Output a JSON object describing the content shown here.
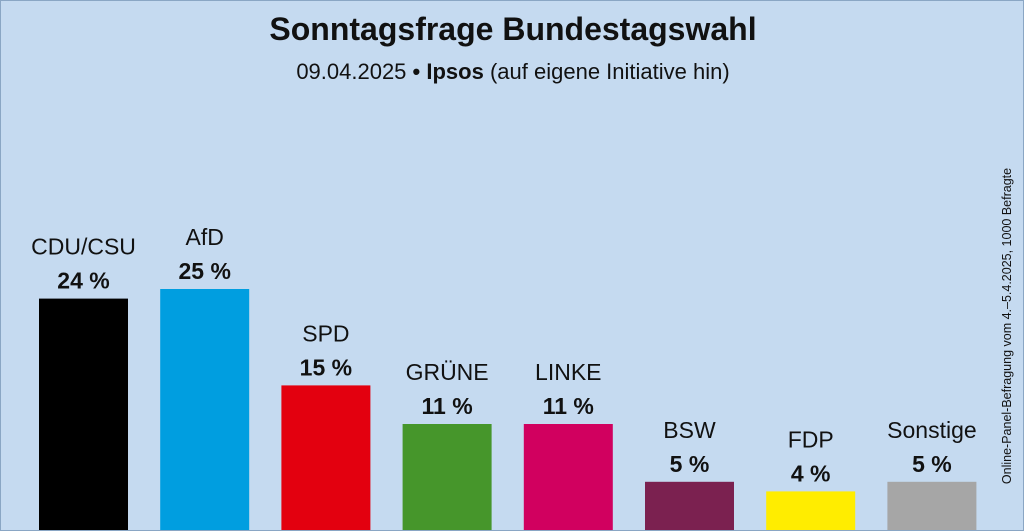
{
  "title": "Sonntagsfrage Bundestagswahl",
  "subtitle": {
    "date": "09.04.2025",
    "separator": "•",
    "institute": "Ipsos",
    "note": "(auf eigene Initiative hin)"
  },
  "source_note": "Online-Panel-Befragung vom 4.–5.4.2025, 1000 Befragte",
  "chart_data": {
    "type": "bar",
    "title": "Sonntagsfrage Bundestagswahl",
    "xlabel": "",
    "ylabel": "",
    "ylim": [
      0,
      25
    ],
    "grid": false,
    "legend": "none",
    "unit": "%",
    "categories": [
      "CDU/CSU",
      "AfD",
      "SPD",
      "GRÜNE",
      "LINKE",
      "BSW",
      "FDP",
      "Sonstige"
    ],
    "values": [
      24,
      25,
      15,
      11,
      11,
      5,
      4,
      5
    ],
    "value_labels": [
      "24 %",
      "25 %",
      "15 %",
      "11 %",
      "11 %",
      "5 %",
      "4 %",
      "5 %"
    ],
    "colors": [
      "#000000",
      "#009ee0",
      "#e3000f",
      "#46962b",
      "#d1005f",
      "#7b2150",
      "#ffed00",
      "#a6a6a6"
    ]
  }
}
